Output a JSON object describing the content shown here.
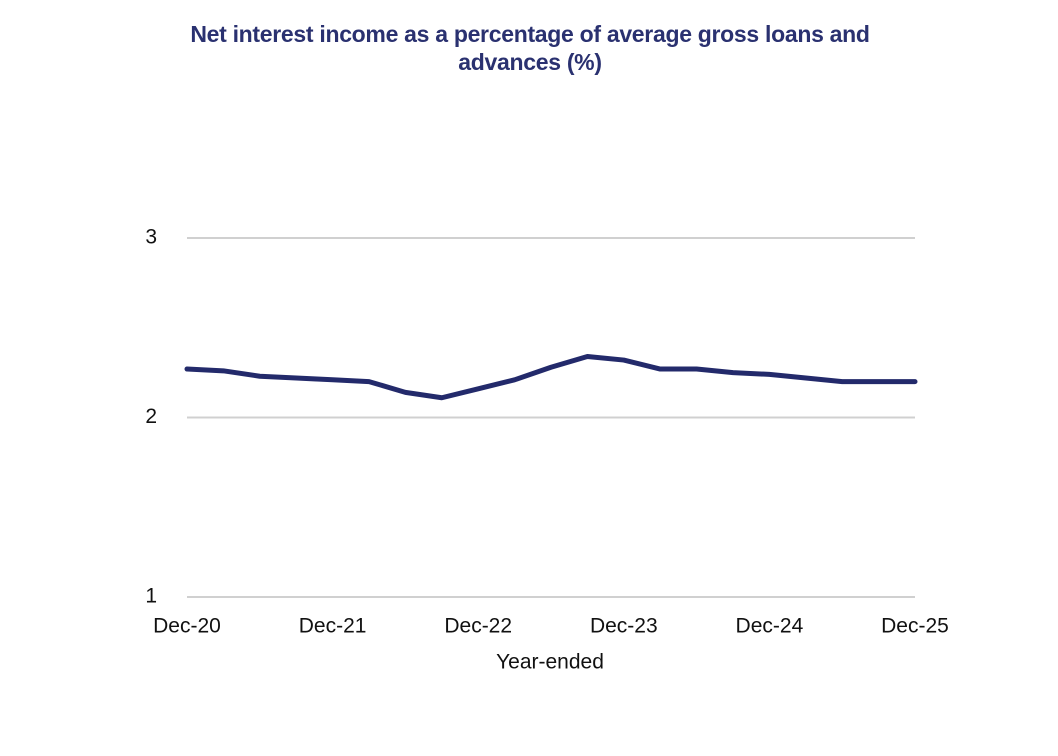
{
  "chart_data": {
    "type": "line",
    "title": "Net interest income as a percentage of average gross loans and advances (%)",
    "x_label": "Year-ended",
    "categories": [
      "Dec-20",
      null,
      null,
      null,
      "Dec-21",
      null,
      null,
      null,
      "Dec-22",
      null,
      null,
      null,
      "Dec-23",
      null,
      null,
      null,
      "Dec-24",
      null,
      null,
      null,
      "Dec-25"
    ],
    "series": [
      {
        "name": "Net interest income as a percentage of average gross loans and advances",
        "color": "#232a6b",
        "values": [
          2.27,
          2.26,
          2.23,
          2.22,
          2.21,
          2.2,
          2.14,
          2.11,
          2.16,
          2.21,
          2.28,
          2.34,
          2.32,
          2.27,
          2.27,
          2.25,
          2.24,
          2.22,
          2.2,
          2.2,
          2.2
        ]
      }
    ],
    "ylim": [
      1,
      3
    ],
    "yticks": [
      1,
      2,
      3
    ],
    "grid": true
  }
}
